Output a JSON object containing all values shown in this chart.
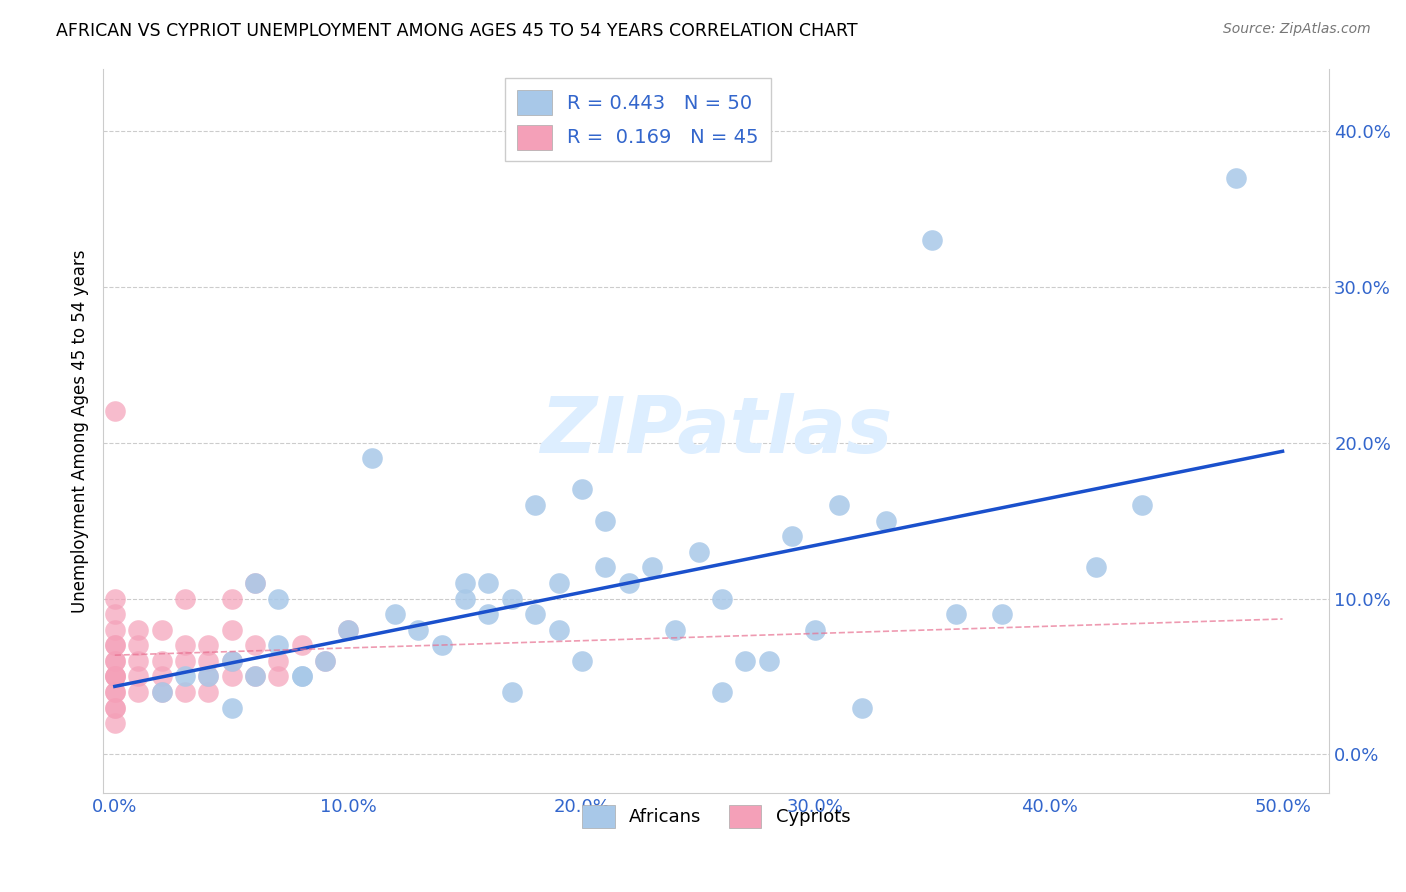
{
  "title": "AFRICAN VS CYPRIOT UNEMPLOYMENT AMONG AGES 45 TO 54 YEARS CORRELATION CHART",
  "source": "Source: ZipAtlas.com",
  "xlabel_ticks": [
    "0.0%",
    "10.0%",
    "20.0%",
    "30.0%",
    "40.0%",
    "50.0%"
  ],
  "xlabel_vals": [
    0.0,
    0.1,
    0.2,
    0.3,
    0.4,
    0.5
  ],
  "ylabel_ticks": [
    "40.0%",
    "30.0%",
    "20.0%",
    "10.0%",
    "0.0%"
  ],
  "ylabel_vals": [
    0.4,
    0.3,
    0.2,
    0.1,
    0.0
  ],
  "ylabel_label": "Unemployment Among Ages 45 to 54 years",
  "xlim": [
    -0.005,
    0.52
  ],
  "ylim": [
    -0.025,
    0.44
  ],
  "legend_R": [
    0.443,
    0.169
  ],
  "legend_N": [
    50,
    45
  ],
  "african_color": "#a8c8e8",
  "cypriot_color": "#f4a0b8",
  "trend_african_color": "#1a50cc",
  "trend_cypriot_color": "#e87090",
  "watermark_color": "#ddeeff",
  "africans_x": [
    0.02,
    0.03,
    0.04,
    0.05,
    0.06,
    0.07,
    0.08,
    0.09,
    0.1,
    0.11,
    0.12,
    0.13,
    0.14,
    0.15,
    0.16,
    0.17,
    0.18,
    0.19,
    0.2,
    0.21,
    0.22,
    0.23,
    0.24,
    0.25,
    0.26,
    0.27,
    0.29,
    0.3,
    0.31,
    0.33,
    0.35,
    0.38,
    0.42,
    0.44,
    0.48,
    0.05,
    0.06,
    0.07,
    0.08,
    0.15,
    0.16,
    0.17,
    0.18,
    0.19,
    0.2,
    0.21,
    0.26,
    0.28,
    0.32,
    0.36
  ],
  "africans_y": [
    0.04,
    0.05,
    0.05,
    0.06,
    0.05,
    0.07,
    0.05,
    0.06,
    0.08,
    0.19,
    0.09,
    0.08,
    0.07,
    0.1,
    0.09,
    0.1,
    0.16,
    0.11,
    0.17,
    0.12,
    0.11,
    0.12,
    0.08,
    0.13,
    0.04,
    0.06,
    0.14,
    0.08,
    0.16,
    0.15,
    0.33,
    0.09,
    0.12,
    0.16,
    0.37,
    0.03,
    0.11,
    0.1,
    0.05,
    0.11,
    0.11,
    0.04,
    0.09,
    0.08,
    0.06,
    0.15,
    0.1,
    0.06,
    0.03,
    0.09
  ],
  "cypriots_x": [
    0.0,
    0.0,
    0.0,
    0.0,
    0.0,
    0.0,
    0.0,
    0.0,
    0.0,
    0.0,
    0.0,
    0.0,
    0.0,
    0.0,
    0.0,
    0.01,
    0.01,
    0.01,
    0.01,
    0.01,
    0.02,
    0.02,
    0.02,
    0.02,
    0.03,
    0.03,
    0.03,
    0.03,
    0.04,
    0.04,
    0.04,
    0.04,
    0.05,
    0.05,
    0.05,
    0.05,
    0.06,
    0.06,
    0.06,
    0.07,
    0.07,
    0.08,
    0.09,
    0.1,
    0.0
  ],
  "cypriots_y": [
    0.04,
    0.05,
    0.06,
    0.03,
    0.07,
    0.05,
    0.04,
    0.06,
    0.08,
    0.09,
    0.1,
    0.07,
    0.05,
    0.03,
    0.02,
    0.05,
    0.04,
    0.07,
    0.06,
    0.08,
    0.05,
    0.06,
    0.08,
    0.04,
    0.04,
    0.07,
    0.1,
    0.06,
    0.04,
    0.06,
    0.05,
    0.07,
    0.05,
    0.06,
    0.08,
    0.1,
    0.05,
    0.07,
    0.11,
    0.05,
    0.06,
    0.07,
    0.06,
    0.08,
    0.22
  ]
}
